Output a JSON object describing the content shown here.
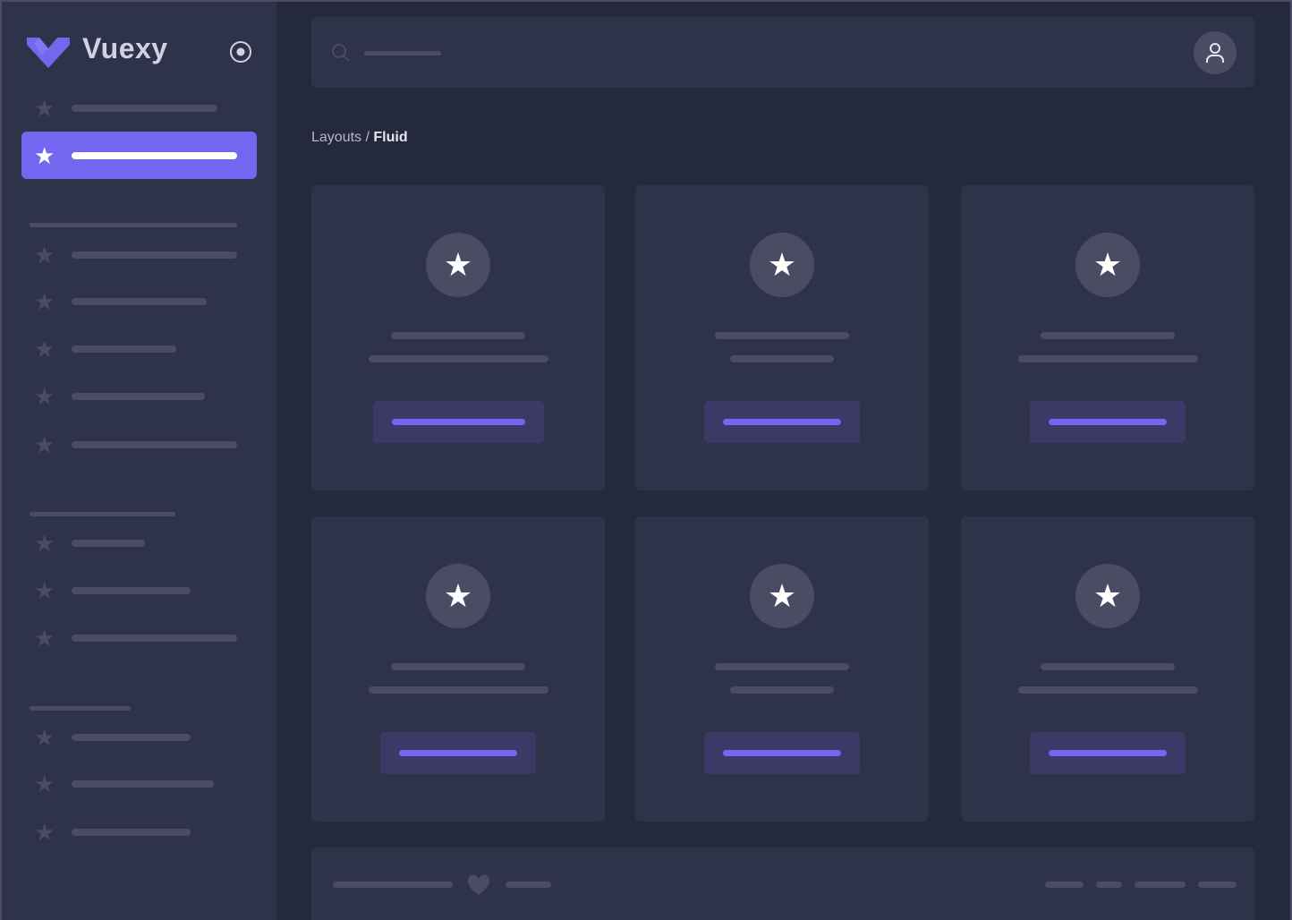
{
  "brand": {
    "name": "Vuexy",
    "logo_color": "#7367f0"
  },
  "sidebar": {
    "toggle_icon": "radio-circle-icon",
    "item_icon": "star-icon",
    "active_index": 1
  },
  "header": {
    "search_icon": "search-icon",
    "user_icon": "user-icon"
  },
  "breadcrumb": {
    "parent": "Layouts",
    "separator": " / ",
    "current": "Fluid"
  },
  "cards": {
    "count": 6,
    "icon": "star-icon"
  },
  "footer": {
    "icon": "heart-icon"
  },
  "colors": {
    "primary": "#7367f0",
    "background": "#25293c",
    "surface": "#2f3349",
    "skeleton": "#4a4c63"
  }
}
